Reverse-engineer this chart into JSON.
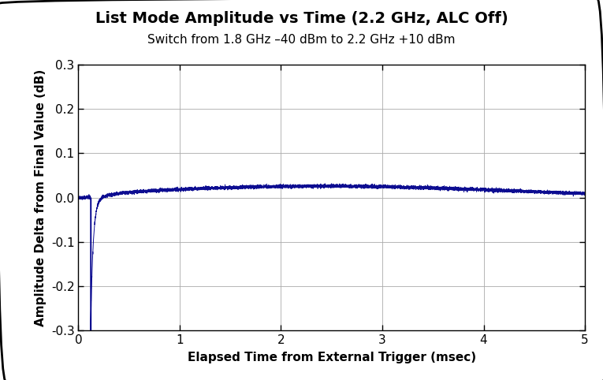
{
  "title": "List Mode Amplitude vs Time (2.2 GHz, ALC Off)",
  "subtitle": "Switch from 1.8 GHz –40 dBm to 2.2 GHz +10 dBm",
  "xlabel": "Elapsed Time from External Trigger (msec)",
  "ylabel": "Amplitude Delta from Final Value (dB)",
  "xlim": [
    0,
    5
  ],
  "ylim": [
    -0.3,
    0.3
  ],
  "xticks": [
    0,
    1,
    2,
    3,
    4,
    5
  ],
  "yticks": [
    -0.3,
    -0.2,
    -0.1,
    0.0,
    0.1,
    0.2,
    0.3
  ],
  "line_color": "#00008B",
  "background_color": "#ffffff",
  "grid_color": "#aaaaaa",
  "title_fontsize": 14,
  "subtitle_fontsize": 11,
  "label_fontsize": 11,
  "tick_fontsize": 11,
  "fig_width": 7.65,
  "fig_height": 4.82,
  "dpi": 100
}
